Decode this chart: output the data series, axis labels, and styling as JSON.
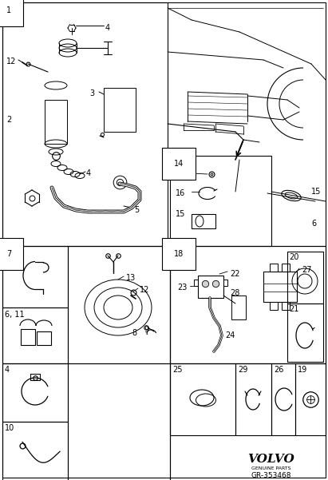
{
  "bg_color": "#ffffff",
  "volvo_text": "VOLVO",
  "genuine_parts": "GENUINE PARTS",
  "part_number": "GR-353468",
  "figsize": [
    4.11,
    6.01
  ],
  "dpi": 100
}
